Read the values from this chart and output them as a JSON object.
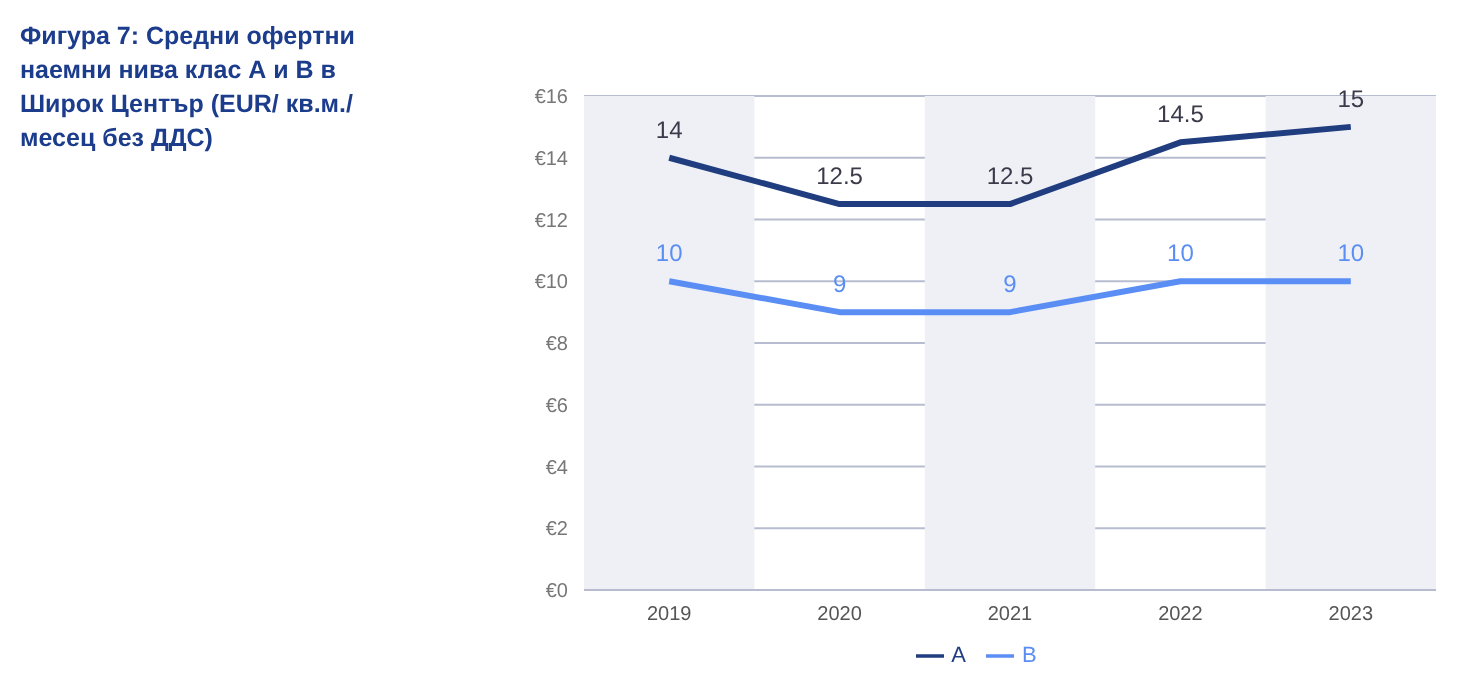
{
  "chart_data": {
    "type": "line",
    "title": "Фигура 7: Средни офертни наемни нива клас А и В в Широк Център (EUR/ кв.м./ месец без ДДС)",
    "categories": [
      "2019",
      "2020",
      "2021",
      "2022",
      "2023"
    ],
    "series": [
      {
        "name": "A",
        "color": "#1f3d7f",
        "values": [
          14,
          12.5,
          12.5,
          14.5,
          15
        ]
      },
      {
        "name": "B",
        "color": "#5b8ef5",
        "values": [
          10,
          9,
          9,
          10,
          10
        ]
      }
    ],
    "ylim": [
      0,
      16
    ],
    "yticks": [
      {
        "value": 0,
        "label": "€0"
      },
      {
        "value": 2,
        "label": "€2"
      },
      {
        "value": 4,
        "label": "€4"
      },
      {
        "value": 6,
        "label": "€6"
      },
      {
        "value": 8,
        "label": "€8"
      },
      {
        "value": 10,
        "label": "€10"
      },
      {
        "value": 12,
        "label": "€12"
      },
      {
        "value": 14,
        "label": "€14"
      },
      {
        "value": 16,
        "label": "€16"
      }
    ],
    "bands": [
      {
        "axis": "x",
        "from": "2019",
        "to": "2019",
        "color": "#eef0f5"
      },
      {
        "axis": "x",
        "from": "2021",
        "to": "2021",
        "color": "#eef0f5"
      },
      {
        "axis": "x",
        "from": "2023",
        "to": "2023",
        "color": "#eef0f5"
      }
    ],
    "grid": "y",
    "legend": "bottom",
    "data_labels": true,
    "marker": "none",
    "line_style": "solid"
  }
}
